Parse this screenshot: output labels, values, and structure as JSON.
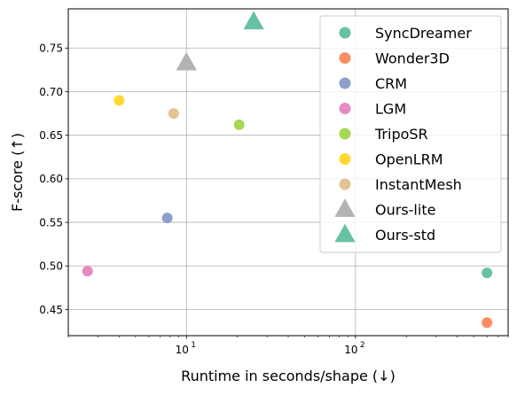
{
  "chart_data": {
    "type": "scatter",
    "xscale": "log",
    "xlim": [
      2,
      800
    ],
    "ylim": [
      0.42,
      0.795
    ],
    "xlabel": "Runtime in seconds/shape (↓)",
    "ylabel": "F-score (↑)",
    "grid": true,
    "legend_position": "top-right",
    "xticks": [
      {
        "value": 10,
        "base": "10",
        "exp": "1"
      },
      {
        "value": 100,
        "base": "10",
        "exp": "2"
      }
    ],
    "yticks": [
      {
        "value": 0.45,
        "label": "0.45"
      },
      {
        "value": 0.5,
        "label": "0.50"
      },
      {
        "value": 0.55,
        "label": "0.55"
      },
      {
        "value": 0.6,
        "label": "0.60"
      },
      {
        "value": 0.65,
        "label": "0.65"
      },
      {
        "value": 0.7,
        "label": "0.70"
      },
      {
        "value": 0.75,
        "label": "0.75"
      }
    ],
    "series": [
      {
        "name": "SyncDreamer",
        "marker": "circle",
        "color": "#66c2a5",
        "points": [
          {
            "x": 600,
            "y": 0.492
          }
        ]
      },
      {
        "name": "Wonder3D",
        "marker": "circle",
        "color": "#fc8d62",
        "points": [
          {
            "x": 600,
            "y": 0.435
          }
        ]
      },
      {
        "name": "CRM",
        "marker": "circle",
        "color": "#8da0cb",
        "points": [
          {
            "x": 7.7,
            "y": 0.555
          }
        ]
      },
      {
        "name": "LGM",
        "marker": "circle",
        "color": "#e78ac3",
        "points": [
          {
            "x": 2.6,
            "y": 0.494
          }
        ]
      },
      {
        "name": "TripoSR",
        "marker": "circle",
        "color": "#a6d854",
        "points": [
          {
            "x": 20.5,
            "y": 0.662
          }
        ]
      },
      {
        "name": "OpenLRM",
        "marker": "circle",
        "color": "#ffd92f",
        "points": [
          {
            "x": 4.0,
            "y": 0.69
          }
        ]
      },
      {
        "name": "InstantMesh",
        "marker": "circle",
        "color": "#e5c494",
        "points": [
          {
            "x": 8.4,
            "y": 0.675
          }
        ]
      },
      {
        "name": "Ours-lite",
        "marker": "triangle",
        "color": "#b3b3b3",
        "points": [
          {
            "x": 10.0,
            "y": 0.733
          }
        ]
      },
      {
        "name": "Ours-std",
        "marker": "triangle",
        "color": "#66c2a5",
        "points": [
          {
            "x": 25.0,
            "y": 0.78
          }
        ]
      }
    ]
  }
}
